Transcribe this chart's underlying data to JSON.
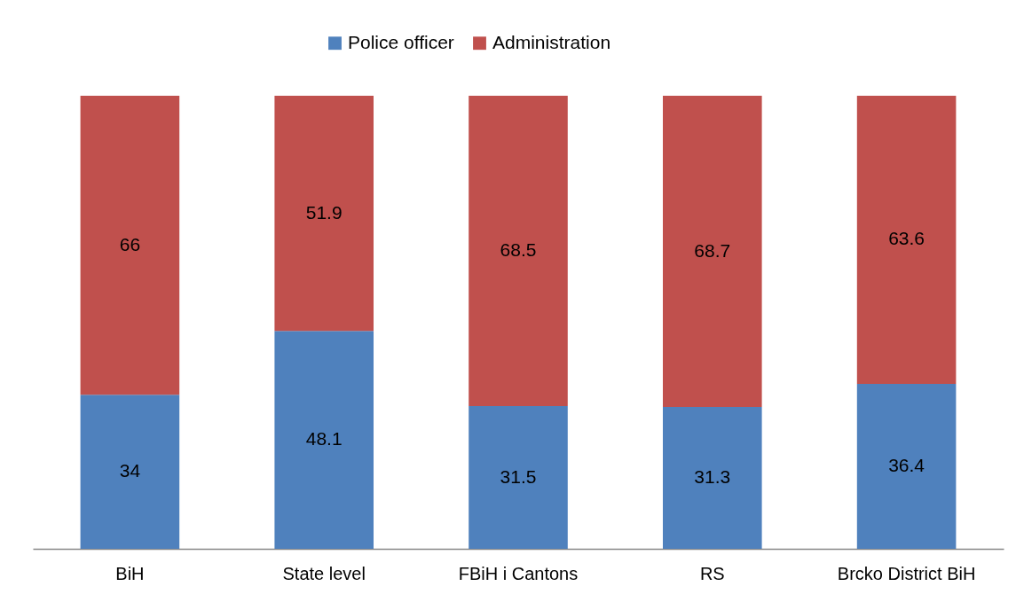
{
  "chart_data": {
    "type": "bar",
    "stacked": true,
    "categories": [
      "BiH",
      "State level",
      "FBiH i Cantons",
      "RS",
      "Brcko District BiH"
    ],
    "series": [
      {
        "name": "Police officer",
        "color": "#4f81bd",
        "values": [
          34,
          48.1,
          31.5,
          31.3,
          36.4
        ]
      },
      {
        "name": "Administration",
        "color": "#c0504d",
        "values": [
          66,
          51.9,
          68.5,
          68.7,
          63.6
        ]
      }
    ],
    "ylim": [
      0,
      100
    ],
    "tick_labels": "x",
    "data_labels": true,
    "legend": "top",
    "grid": false
  }
}
